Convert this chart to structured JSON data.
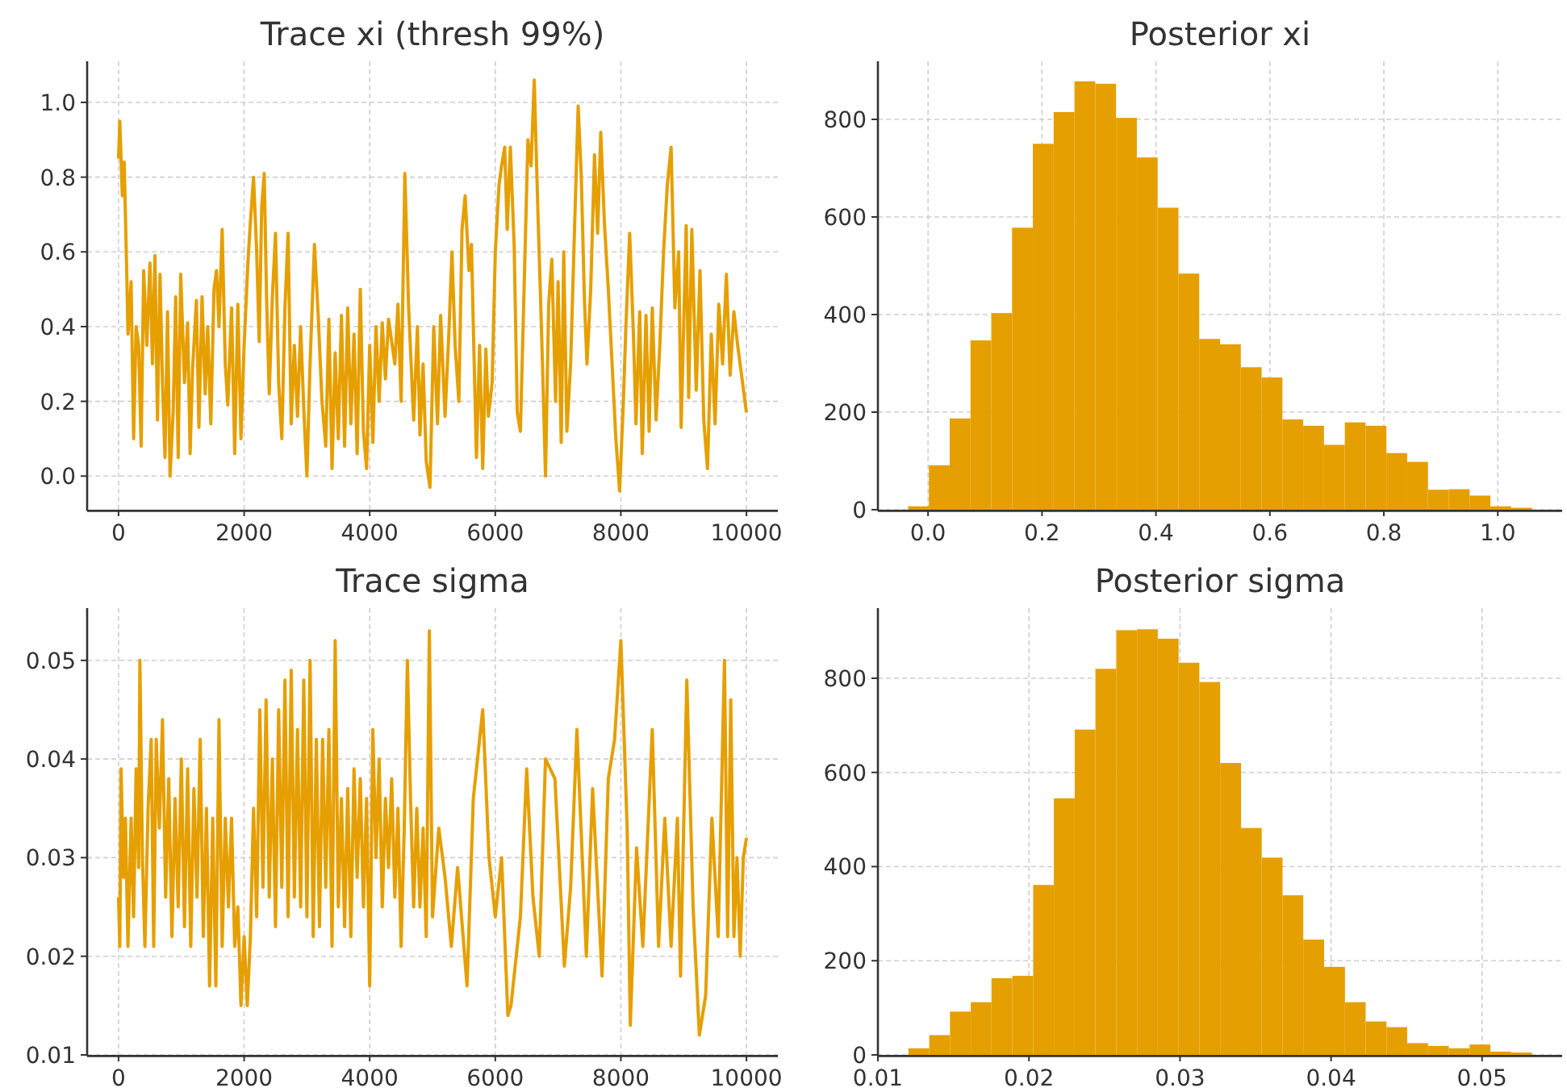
{
  "chart_data": [
    {
      "type": "line",
      "title": "Trace xi (thresh 99%)",
      "color": "#e69f00",
      "grid": true,
      "xlim": [
        -500,
        10500
      ],
      "ylim": [
        -0.09,
        1.11
      ],
      "xticks": [
        0,
        2000,
        4000,
        6000,
        8000,
        10000
      ],
      "yticks": [
        {
          "value": 0,
          "label": "0.0"
        },
        0.2,
        0.4,
        0.6,
        0.8,
        {
          "value": 1,
          "label": "1.0"
        }
      ],
      "x": [
        0,
        20,
        60,
        90,
        130,
        150,
        200,
        240,
        280,
        320,
        360,
        400,
        450,
        500,
        540,
        580,
        620,
        660,
        700,
        740,
        780,
        820,
        870,
        910,
        950,
        990,
        1050,
        1100,
        1140,
        1180,
        1240,
        1280,
        1330,
        1380,
        1420,
        1470,
        1520,
        1560,
        1600,
        1650,
        1700,
        1740,
        1800,
        1850,
        1900,
        1950,
        2000,
        2060,
        2100,
        2150,
        2200,
        2240,
        2280,
        2320,
        2360,
        2400,
        2450,
        2500,
        2550,
        2600,
        2650,
        2700,
        2750,
        2800,
        2850,
        2900,
        2950,
        3000,
        3050,
        3120,
        3180,
        3240,
        3300,
        3350,
        3400,
        3450,
        3500,
        3550,
        3600,
        3650,
        3700,
        3750,
        3800,
        3850,
        3900,
        3950,
        4000,
        4050,
        4100,
        4150,
        4200,
        4250,
        4300,
        4400,
        4450,
        4500,
        4560,
        4620,
        4700,
        4760,
        4800,
        4850,
        4900,
        4960,
        5020,
        5080,
        5130,
        5200,
        5260,
        5310,
        5360,
        5420,
        5470,
        5520,
        5580,
        5620,
        5660,
        5700,
        5750,
        5800,
        5850,
        5890,
        5950,
        6000,
        6060,
        6100,
        6150,
        6190,
        6240,
        6300,
        6350,
        6400,
        6460,
        6520,
        6570,
        6620,
        6680,
        6720,
        6760,
        6800,
        6850,
        6900,
        6960,
        7000,
        7050,
        7090,
        7140,
        7200,
        7260,
        7320,
        7370,
        7420,
        7460,
        7520,
        7580,
        7630,
        7680,
        7740,
        7800,
        7860,
        7920,
        7980,
        8040,
        8080,
        8140,
        8200,
        8240,
        8300,
        8340,
        8400,
        8450,
        8500,
        8560,
        8620,
        8680,
        8740,
        8800,
        8860,
        8920,
        8960,
        9000,
        9040,
        9080,
        9130,
        9200,
        9260,
        9320,
        9380,
        9440,
        9500,
        9560,
        9620,
        9680,
        9740,
        9800,
        9860,
        10000
      ],
      "values": [
        0.85,
        0.95,
        0.75,
        0.84,
        0.55,
        0.38,
        0.52,
        0.1,
        0.4,
        0.35,
        0.08,
        0.55,
        0.35,
        0.57,
        0.3,
        0.59,
        0.15,
        0.54,
        0.25,
        0.05,
        0.44,
        0.0,
        0.17,
        0.48,
        0.05,
        0.54,
        0.25,
        0.41,
        0.06,
        0.29,
        0.47,
        0.13,
        0.48,
        0.22,
        0.4,
        0.14,
        0.5,
        0.55,
        0.4,
        0.66,
        0.3,
        0.19,
        0.45,
        0.06,
        0.46,
        0.1,
        0.35,
        0.57,
        0.68,
        0.8,
        0.6,
        0.36,
        0.72,
        0.81,
        0.46,
        0.22,
        0.48,
        0.65,
        0.25,
        0.1,
        0.45,
        0.65,
        0.14,
        0.35,
        0.16,
        0.4,
        0.18,
        0.0,
        0.3,
        0.62,
        0.43,
        0.2,
        0.08,
        0.42,
        0.02,
        0.33,
        0.1,
        0.43,
        0.08,
        0.45,
        0.14,
        0.38,
        0.06,
        0.5,
        0.12,
        0.02,
        0.35,
        0.09,
        0.4,
        0.2,
        0.41,
        0.26,
        0.42,
        0.3,
        0.46,
        0.2,
        0.81,
        0.45,
        0.15,
        0.4,
        0.11,
        0.3,
        0.04,
        -0.03,
        0.4,
        0.14,
        0.43,
        0.16,
        0.38,
        0.6,
        0.35,
        0.2,
        0.66,
        0.75,
        0.55,
        0.62,
        0.33,
        0.05,
        0.35,
        0.02,
        0.34,
        0.16,
        0.25,
        0.6,
        0.78,
        0.83,
        0.88,
        0.66,
        0.88,
        0.62,
        0.17,
        0.12,
        0.51,
        0.9,
        0.83,
        1.06,
        0.7,
        0.48,
        0.25,
        0.0,
        0.46,
        0.58,
        0.2,
        0.52,
        0.09,
        0.6,
        0.12,
        0.3,
        0.65,
        0.99,
        0.8,
        0.47,
        0.3,
        0.5,
        0.86,
        0.65,
        0.92,
        0.67,
        0.5,
        0.3,
        0.1,
        -0.04,
        0.2,
        0.4,
        0.65,
        0.38,
        0.14,
        0.44,
        0.06,
        0.43,
        0.12,
        0.45,
        0.15,
        0.35,
        0.6,
        0.78,
        0.88,
        0.45,
        0.6,
        0.13,
        0.4,
        0.67,
        0.21,
        0.66,
        0.23,
        0.55,
        0.15,
        0.02,
        0.38,
        0.14,
        0.46,
        0.3,
        0.54,
        0.27,
        0.44,
        0.35,
        0.17
      ]
    },
    {
      "type": "histogram",
      "title": "Posterior xi",
      "color": "#e69f00",
      "grid": true,
      "xlim": [
        -0.088,
        1.113
      ],
      "ylim": [
        0,
        919
      ],
      "xticks": [
        {
          "value": 0,
          "label": "0.0"
        },
        0.2,
        0.4,
        0.6,
        0.8,
        {
          "value": 1,
          "label": "1.0"
        }
      ],
      "yticks": [
        0,
        200,
        400,
        600,
        800
      ],
      "bins": [
        -0.035,
        0.0015,
        0.038,
        0.0745,
        0.111,
        0.1475,
        0.184,
        0.2205,
        0.257,
        0.2935,
        0.33,
        0.3665,
        0.403,
        0.4395,
        0.476,
        0.5125,
        0.549,
        0.5855,
        0.622,
        0.6585,
        0.695,
        0.7315,
        0.768,
        0.8045,
        0.841,
        0.8775,
        0.914,
        0.9505,
        0.987,
        1.0235,
        1.06
      ],
      "values": [
        7,
        91,
        187,
        347,
        403,
        578,
        750,
        815,
        878,
        873,
        803,
        722,
        619,
        484,
        350,
        339,
        292,
        271,
        185,
        172,
        133,
        179,
        172,
        116,
        98,
        41,
        42,
        29,
        7,
        4
      ]
    },
    {
      "type": "line",
      "title": "Trace sigma",
      "color": "#e69f00",
      "grid": true,
      "xlim": [
        -500,
        10500
      ],
      "ylim": [
        0.01,
        0.0553
      ],
      "xticks": [
        0,
        2000,
        4000,
        6000,
        8000,
        10000
      ],
      "yticks": [
        0.01,
        0.02,
        0.03,
        0.04,
        0.05
      ],
      "x": [
        0,
        20,
        40,
        80,
        110,
        150,
        200,
        240,
        280,
        320,
        340,
        380,
        420,
        470,
        520,
        560,
        600,
        650,
        700,
        750,
        800,
        850,
        900,
        950,
        1000,
        1050,
        1100,
        1150,
        1200,
        1250,
        1300,
        1350,
        1400,
        1450,
        1500,
        1550,
        1600,
        1650,
        1700,
        1750,
        1800,
        1850,
        1900,
        1950,
        2000,
        2050,
        2100,
        2150,
        2200,
        2250,
        2300,
        2350,
        2400,
        2450,
        2500,
        2550,
        2600,
        2650,
        2700,
        2750,
        2800,
        2850,
        2900,
        2950,
        3000,
        3050,
        3100,
        3150,
        3200,
        3250,
        3300,
        3350,
        3400,
        3450,
        3500,
        3550,
        3600,
        3650,
        3700,
        3750,
        3800,
        3850,
        3900,
        3950,
        4000,
        4050,
        4100,
        4150,
        4200,
        4250,
        4300,
        4350,
        4400,
        4450,
        4500,
        4550,
        4600,
        4650,
        4700,
        4750,
        4800,
        4850,
        4900,
        4950,
        5000,
        5100,
        5200,
        5300,
        5400,
        5550,
        5650,
        5800,
        5900,
        6000,
        6100,
        6200,
        6250,
        6400,
        6500,
        6600,
        6700,
        6800,
        6950,
        7100,
        7200,
        7300,
        7450,
        7550,
        7700,
        7800,
        7900,
        8000,
        8100,
        8150,
        8250,
        8350,
        8500,
        8600,
        8700,
        8800,
        8900,
        8950,
        9050,
        9150,
        9250,
        9350,
        9450,
        9550,
        9650,
        9700,
        9750,
        9800,
        9850,
        9900,
        9950,
        10000
      ],
      "values": [
        0.026,
        0.021,
        0.039,
        0.028,
        0.034,
        0.021,
        0.034,
        0.024,
        0.039,
        0.029,
        0.05,
        0.03,
        0.021,
        0.035,
        0.042,
        0.021,
        0.042,
        0.033,
        0.044,
        0.026,
        0.038,
        0.022,
        0.036,
        0.025,
        0.04,
        0.023,
        0.039,
        0.021,
        0.037,
        0.026,
        0.042,
        0.022,
        0.035,
        0.017,
        0.034,
        0.017,
        0.044,
        0.021,
        0.034,
        0.025,
        0.034,
        0.021,
        0.025,
        0.015,
        0.022,
        0.015,
        0.022,
        0.035,
        0.024,
        0.045,
        0.027,
        0.046,
        0.026,
        0.04,
        0.023,
        0.045,
        0.027,
        0.048,
        0.024,
        0.049,
        0.026,
        0.043,
        0.025,
        0.048,
        0.024,
        0.05,
        0.022,
        0.042,
        0.023,
        0.042,
        0.027,
        0.043,
        0.021,
        0.052,
        0.025,
        0.036,
        0.023,
        0.037,
        0.022,
        0.039,
        0.028,
        0.038,
        0.025,
        0.036,
        0.017,
        0.043,
        0.03,
        0.04,
        0.025,
        0.036,
        0.029,
        0.038,
        0.026,
        0.035,
        0.021,
        0.033,
        0.05,
        0.036,
        0.025,
        0.035,
        0.025,
        0.033,
        0.022,
        0.053,
        0.024,
        0.033,
        0.028,
        0.021,
        0.029,
        0.017,
        0.036,
        0.045,
        0.03,
        0.024,
        0.03,
        0.014,
        0.015,
        0.024,
        0.039,
        0.026,
        0.02,
        0.04,
        0.038,
        0.019,
        0.027,
        0.043,
        0.02,
        0.037,
        0.018,
        0.038,
        0.042,
        0.052,
        0.033,
        0.013,
        0.031,
        0.021,
        0.043,
        0.021,
        0.034,
        0.021,
        0.034,
        0.018,
        0.048,
        0.025,
        0.012,
        0.016,
        0.034,
        0.022,
        0.05,
        0.022,
        0.046,
        0.022,
        0.03,
        0.02,
        0.03,
        0.032
      ]
    },
    {
      "type": "histogram",
      "title": "Posterior sigma",
      "color": "#e69f00",
      "grid": true,
      "xlim": [
        0.01,
        0.0553
      ],
      "ylim": [
        0,
        949
      ],
      "xticks": [
        0.01,
        0.02,
        0.03,
        0.04,
        0.05
      ],
      "yticks": [
        0,
        200,
        400,
        600,
        800
      ],
      "bins": [
        0.01202,
        0.0134,
        0.01477,
        0.01615,
        0.01752,
        0.0189,
        0.02028,
        0.02165,
        0.02303,
        0.0244,
        0.02578,
        0.02716,
        0.02853,
        0.02991,
        0.03128,
        0.03266,
        0.03404,
        0.03541,
        0.03679,
        0.03816,
        0.03954,
        0.04092,
        0.04229,
        0.04367,
        0.04504,
        0.04642,
        0.0478,
        0.04917,
        0.05055,
        0.05192,
        0.0533
      ],
      "values": [
        14,
        42,
        92,
        112,
        163,
        168,
        361,
        545,
        691,
        820,
        902,
        904,
        884,
        833,
        792,
        620,
        482,
        419,
        339,
        245,
        187,
        112,
        71,
        59,
        25,
        19,
        14,
        22,
        7,
        5
      ]
    }
  ]
}
